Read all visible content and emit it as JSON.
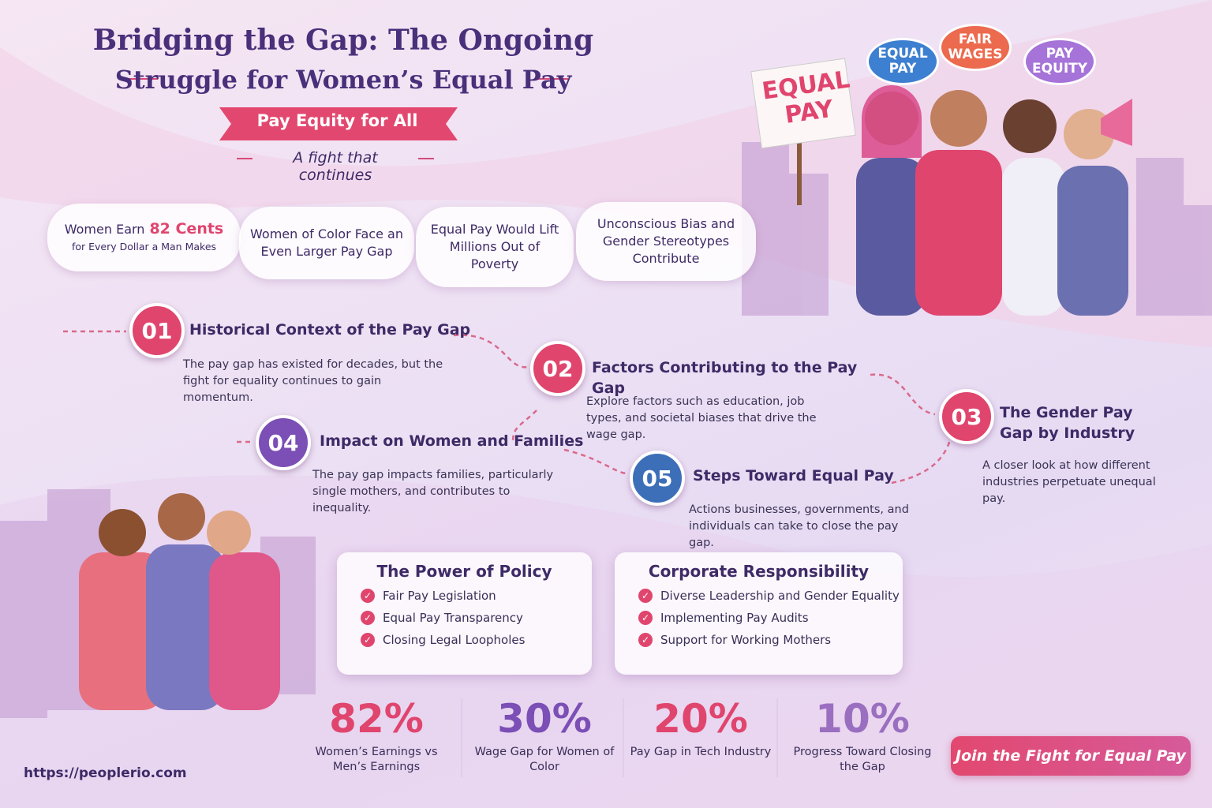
{
  "header": {
    "title_line1": "Bridging the Gap: The Ongoing",
    "title_line2": "Struggle for Women’s Equal Pay",
    "banner": "Pay Equity for All",
    "tagline": "A fight that continues"
  },
  "protest": {
    "sign": "EQUAL PAY",
    "badges": [
      "EQUAL PAY",
      "FAIR WAGES",
      "PAY EQUITY"
    ]
  },
  "callouts": [
    {
      "lead": "Women Earn",
      "highlight": "82 Cents",
      "sub": "for Every Dollar a Man Makes"
    },
    {
      "text": "Women of Color Face an Even Larger Pay Gap"
    },
    {
      "text": "Equal Pay Would Lift Millions Out of Poverty"
    },
    {
      "text": "Unconscious Bias and Gender Stereotypes Contribute"
    }
  ],
  "steps": [
    {
      "number": "01",
      "title": "Historical Context of the Pay Gap",
      "text": "The pay gap has existed for decades, but the fight for equality continues to gain momentum."
    },
    {
      "number": "02",
      "title": "Factors Contributing to the Pay Gap",
      "text": "Explore factors such as education, job types, and societal biases that drive the wage gap."
    },
    {
      "number": "03",
      "title": "The Gender Pay Gap by Industry",
      "text": "A closer look at how different industries perpetuate unequal pay."
    },
    {
      "number": "04",
      "title": "Impact on Women and Families",
      "text": "The pay gap impacts families, particularly single mothers, and contributes to inequality."
    },
    {
      "number": "05",
      "title": "Steps Toward Equal Pay",
      "text": "Actions businesses, governments, and individuals can take to close the pay gap."
    }
  ],
  "panels": [
    {
      "title": "The Power of Policy",
      "items": [
        "Fair Pay Legislation",
        "Equal Pay Transparency",
        "Closing Legal Loopholes"
      ]
    },
    {
      "title": "Corporate Responsibility",
      "items": [
        "Diverse Leadership and Gender Equality",
        "Implementing Pay Audits",
        "Support for Working Mothers"
      ]
    }
  ],
  "stats": [
    {
      "value": "82%",
      "label": "Women’s Earnings vs Men’s Earnings"
    },
    {
      "value": "30%",
      "label": "Wage Gap for Women of Color"
    },
    {
      "value": "20%",
      "label": "Pay Gap in Tech Industry"
    },
    {
      "value": "10%",
      "label": "Progress Toward Closing the Gap"
    }
  ],
  "footer": {
    "url": "https://peoplerio.com",
    "button": "Join the Fight for Equal Pay"
  }
}
